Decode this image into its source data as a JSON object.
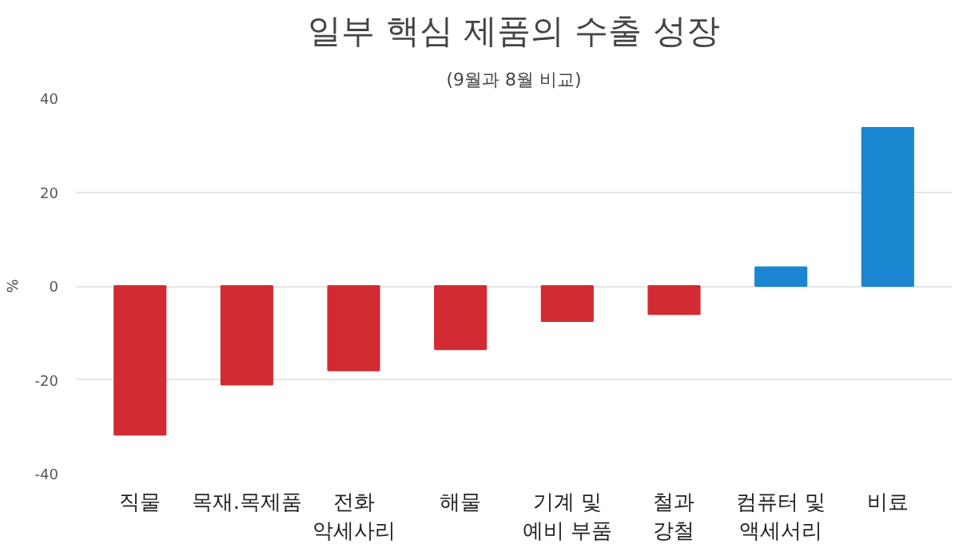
{
  "chart_data": {
    "type": "bar",
    "title": "일부 핵심 제품의 수출 성장",
    "subtitle": "(9월과 8월 비교)",
    "ylabel": "%",
    "categories": [
      "직물",
      "목재.목제품",
      "전화\n악세사리",
      "해물",
      "기계 및\n예비 부품",
      "철과\n강철",
      "컴퓨터 및\n액세서리",
      "비료"
    ],
    "values": [
      -31.7,
      -21,
      -18,
      -13.5,
      -7.5,
      -6,
      4,
      33.7
    ],
    "colors": [
      "#d22b33",
      "#d22b33",
      "#d22b33",
      "#d22b33",
      "#d22b33",
      "#d22b33",
      "#1a86d0",
      "#1a86d0"
    ],
    "ylim": [
      -40,
      40
    ],
    "yticks": [
      -40,
      -20,
      0,
      20,
      40
    ],
    "grid": "y"
  }
}
